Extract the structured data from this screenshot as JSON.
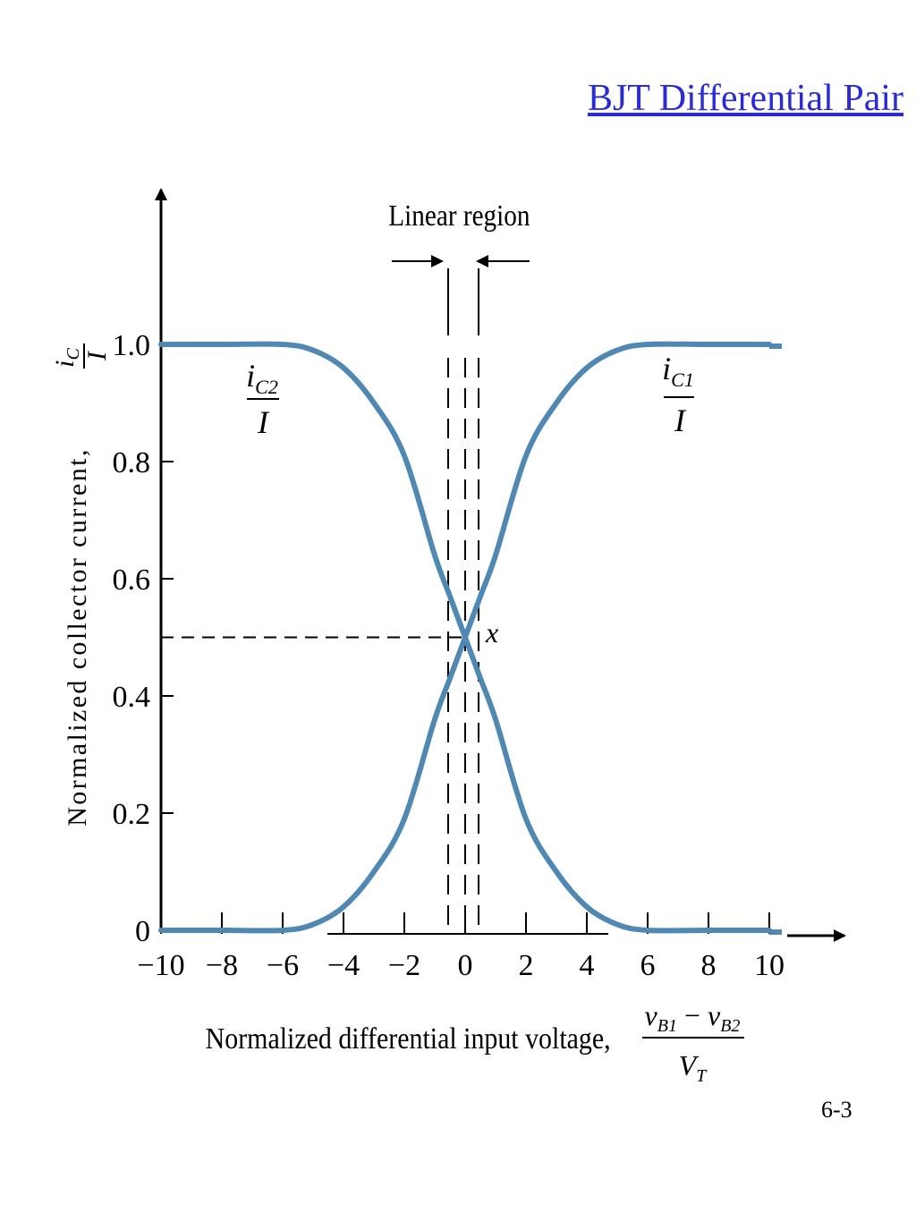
{
  "slide": {
    "title": "BJT Differential Pair",
    "page_number": "6-3"
  },
  "chart_data": {
    "type": "line",
    "ylabel_text": "Normalized collector current,",
    "ylabel_fraction": {
      "num_base": "i",
      "num_sub": "C",
      "den": "I"
    },
    "xlabel_text": "Normalized differential input voltage,",
    "xlabel_fraction": {
      "num_a": "v",
      "num_a_sub": "B1",
      "minus": "−",
      "num_b": "v",
      "num_b_sub": "B2",
      "den_base": "V",
      "den_sub": "T"
    },
    "xlim": [
      -10,
      10
    ],
    "ylim": [
      0,
      1.0
    ],
    "x_ticks": [
      -10,
      -8,
      -6,
      -4,
      -2,
      0,
      2,
      4,
      6,
      8,
      10
    ],
    "x_tick_labels": [
      "−10",
      "−8",
      "−6",
      "−4",
      "−2",
      "0",
      "2",
      "4",
      "6",
      "8",
      "10"
    ],
    "y_ticks": [
      0,
      0.2,
      0.4,
      0.6,
      0.8,
      1.0
    ],
    "y_tick_labels": [
      "0",
      "0.2",
      "0.4",
      "0.6",
      "0.8",
      "1.0"
    ],
    "grid": false,
    "series": [
      {
        "label": {
          "base": "i",
          "sub": "C2",
          "den": "I"
        },
        "x": [
          -10,
          -8,
          -6,
          -5,
          -4,
          -3,
          -2,
          -1,
          -0.5,
          0,
          0.5,
          1,
          2,
          3,
          4,
          5,
          6,
          8,
          10
        ],
        "y": [
          1.0,
          1.0,
          1.0,
          0.99,
          0.96,
          0.9,
          0.81,
          0.64,
          0.57,
          0.5,
          0.43,
          0.36,
          0.19,
          0.1,
          0.04,
          0.01,
          0.0,
          0.0,
          0.0
        ]
      },
      {
        "label": {
          "base": "i",
          "sub": "C1",
          "den": "I"
        },
        "x": [
          -10,
          -8,
          -6,
          -5,
          -4,
          -3,
          -2,
          -1,
          -0.5,
          0,
          0.5,
          1,
          2,
          3,
          4,
          5,
          6,
          8,
          10
        ],
        "y": [
          0.0,
          0.0,
          0.0,
          0.01,
          0.04,
          0.1,
          0.19,
          0.36,
          0.43,
          0.5,
          0.57,
          0.64,
          0.81,
          0.9,
          0.96,
          0.99,
          1.0,
          1.0,
          1.0
        ]
      }
    ],
    "annotations": {
      "linear_region": "Linear region",
      "linear_region_bounds": [
        -0.5,
        0.5
      ],
      "crossing_point": {
        "label": "x",
        "x": 0,
        "y": 0.5
      }
    },
    "colors": {
      "curve": "#4f88b3",
      "axis": "#000000"
    }
  }
}
